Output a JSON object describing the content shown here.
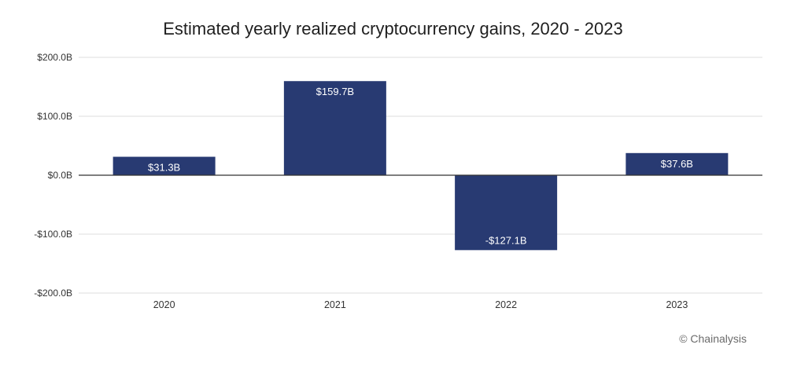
{
  "chart_data": {
    "type": "bar",
    "title": "Estimated yearly realized cryptocurrency gains, 2020 - 2023",
    "categories": [
      "2020",
      "2021",
      "2022",
      "2023"
    ],
    "values": [
      31.3,
      159.7,
      -127.1,
      37.6
    ],
    "data_labels": [
      "$31.3B",
      "$159.7B",
      "-$127.1B",
      "$37.6B"
    ],
    "ylim": [
      -200,
      200
    ],
    "yticks": [
      200,
      100,
      0,
      -100,
      -200
    ],
    "ytick_labels": [
      "$200.0B",
      "$100.0B",
      "$0.0B",
      "-$100.0B",
      "-$200.0B"
    ],
    "xlabel": "",
    "ylabel": "",
    "grid": true,
    "bar_color": "#283a72",
    "gridline_color": "#dcdcdc",
    "zero_line_color": "#333333"
  },
  "credit": "© Chainalysis"
}
